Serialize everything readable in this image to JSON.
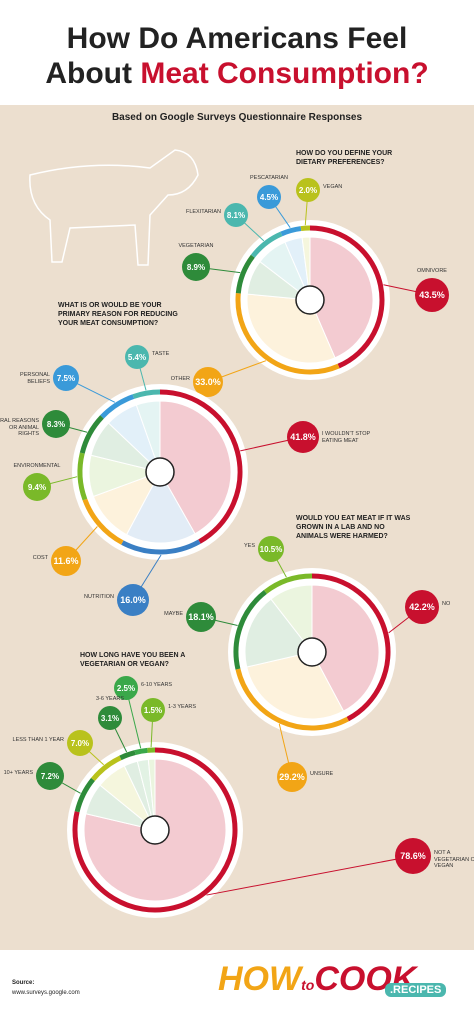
{
  "title_line1": "How Do Americans Feel",
  "title_line2": "About",
  "title_highlight": "Meat Consumption?",
  "subtitle": "Based on Google Surveys Questionnaire Responses",
  "source_label": "Source:",
  "source": "www.surveys.google.com",
  "logo": [
    "HOW",
    "to",
    "COOK",
    ".RECIPES"
  ],
  "chart_data": [
    {
      "type": "pie",
      "title": "HOW DO YOU DEFINE YOUR DIETARY PREFERENCES?",
      "categories": [
        "OMNIVORE",
        "OTHER",
        "VEGETARIAN",
        "FLEXITARIAN",
        "PESCATARIAN",
        "VEGAN"
      ],
      "values": [
        43.5,
        33.0,
        8.9,
        8.1,
        4.5,
        2.0
      ],
      "value_labels": [
        "43.5%",
        "33.0%",
        "8.9%",
        "8.1%",
        "4.5%",
        "2.0%"
      ],
      "colors": [
        "#c8102e",
        "#f2a516",
        "#2e8b3a",
        "#4bb7ae",
        "#3a9ad9",
        "#b9c21c"
      ]
    },
    {
      "type": "pie",
      "title": "WHAT IS OR WOULD BE YOUR PRIMARY REASON FOR REDUCING YOUR MEAT CONSUMPTION?",
      "categories": [
        "I WOULDN'T STOP EATING MEAT",
        "NUTRITION",
        "COST",
        "ENVIRONMENTAL",
        "MORAL REASONS OR ANIMAL RIGHTS",
        "PERSONAL BELIEFS",
        "TASTE"
      ],
      "values": [
        41.8,
        16.0,
        11.6,
        9.4,
        8.3,
        7.5,
        5.4
      ],
      "value_labels": [
        "41.8%",
        "16.0%",
        "11.6%",
        "9.4%",
        "8.3%",
        "7.5%",
        "5.4%"
      ],
      "colors": [
        "#c8102e",
        "#3a7fc4",
        "#f2a516",
        "#7ab929",
        "#2e8b3a",
        "#3a9ad9",
        "#4bb7ae"
      ]
    },
    {
      "type": "pie",
      "title": "WOULD YOU EAT MEAT IF IT WAS GROWN IN A LAB AND NO ANIMALS WERE HARMED?",
      "categories": [
        "NO",
        "UNSURE",
        "MAYBE",
        "YES"
      ],
      "values": [
        42.2,
        29.2,
        18.1,
        10.5
      ],
      "value_labels": [
        "42.2%",
        "29.2%",
        "18.1%",
        "10.5%"
      ],
      "colors": [
        "#c8102e",
        "#f2a516",
        "#2e8b3a",
        "#7ab929"
      ]
    },
    {
      "type": "pie",
      "title": "HOW LONG HAVE YOU BEEN A VEGETARIAN OR VEGAN?",
      "categories": [
        "NOT A VEGETARIAN OR VEGAN",
        "10+ YEARS",
        "LESS THAN 1 YEAR",
        "3-6 YEARS",
        "6-10 YEARS",
        "1-3 YEARS"
      ],
      "values": [
        78.6,
        7.2,
        7.0,
        3.1,
        2.5,
        1.5
      ],
      "value_labels": [
        "78.6%",
        "7.2%",
        "7.0%",
        "3.1%",
        "2.5%",
        "1.5%"
      ],
      "colors": [
        "#c8102e",
        "#2e8b3a",
        "#b9c21c",
        "#2e8b3a",
        "#3aa84a",
        "#7ab929"
      ]
    }
  ]
}
